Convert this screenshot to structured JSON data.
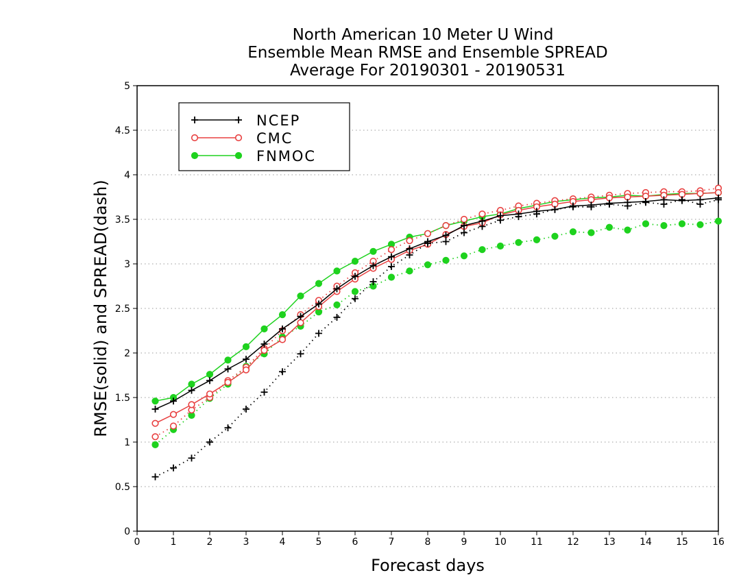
{
  "chart_data": {
    "type": "line",
    "title_lines": [
      "North American 10 Meter U Wind",
      "Ensemble Mean RMSE and Ensemble SPREAD",
      "Average For 20190301 - 20190531"
    ],
    "xlabel": "Forecast days",
    "ylabel": "RMSE(solid) and SPREAD(dash)",
    "xlim": [
      0,
      16
    ],
    "ylim": [
      0,
      5
    ],
    "xticks": [
      "0",
      "1",
      "2",
      "3",
      "4",
      "5",
      "6",
      "7",
      "8",
      "9",
      "10",
      "11",
      "12",
      "13",
      "14",
      "15",
      "16"
    ],
    "yticks": [
      "0",
      "0.5",
      "1",
      "1.5",
      "2",
      "2.5",
      "3",
      "3.5",
      "4",
      "4.5",
      "5"
    ],
    "grid": "horizontal dotted",
    "legend_position": "top-left",
    "x": [
      0.5,
      1,
      1.5,
      2,
      2.5,
      3,
      3.5,
      4,
      4.5,
      5,
      5.5,
      6,
      6.5,
      7,
      7.5,
      8,
      8.5,
      9,
      9.5,
      10,
      10.5,
      11,
      11.5,
      12,
      12.5,
      13,
      13.5,
      14,
      14.5,
      15,
      15.5,
      16
    ],
    "series": [
      {
        "name": "NCEP",
        "marker": "plus",
        "color": "#000000",
        "rmse": [
          1.37,
          1.46,
          1.58,
          1.69,
          1.82,
          1.93,
          2.1,
          2.27,
          2.41,
          2.55,
          2.72,
          2.86,
          2.98,
          3.08,
          3.17,
          3.25,
          3.32,
          3.43,
          3.48,
          3.54,
          3.56,
          3.59,
          3.61,
          3.65,
          3.66,
          3.68,
          3.69,
          3.7,
          3.72,
          3.71,
          3.72,
          3.74
        ],
        "spread": [
          0.61,
          0.71,
          0.82,
          1.0,
          1.16,
          1.37,
          1.56,
          1.79,
          1.99,
          2.22,
          2.4,
          2.61,
          2.8,
          2.97,
          3.1,
          3.23,
          3.25,
          3.35,
          3.42,
          3.49,
          3.53,
          3.56,
          3.61,
          3.64,
          3.64,
          3.67,
          3.65,
          3.69,
          3.67,
          3.72,
          3.67,
          3.72
        ]
      },
      {
        "name": "CMC",
        "marker": "open-circle",
        "color": "#e84040",
        "rmse": [
          1.21,
          1.31,
          1.42,
          1.54,
          1.67,
          1.81,
          2.03,
          2.15,
          2.34,
          2.52,
          2.69,
          2.83,
          2.95,
          3.05,
          3.15,
          3.22,
          3.33,
          3.42,
          3.46,
          3.55,
          3.6,
          3.64,
          3.67,
          3.7,
          3.72,
          3.74,
          3.75,
          3.76,
          3.77,
          3.78,
          3.79,
          3.8
        ],
        "spread": [
          1.06,
          1.18,
          1.36,
          1.5,
          1.69,
          1.84,
          2.05,
          2.25,
          2.43,
          2.59,
          2.75,
          2.9,
          3.03,
          3.16,
          3.26,
          3.34,
          3.43,
          3.5,
          3.56,
          3.6,
          3.65,
          3.68,
          3.71,
          3.73,
          3.75,
          3.77,
          3.79,
          3.8,
          3.81,
          3.81,
          3.82,
          3.85
        ]
      },
      {
        "name": "FNMOC",
        "marker": "filled-circle",
        "color": "#1ed21e",
        "rmse": [
          1.46,
          1.5,
          1.65,
          1.76,
          1.92,
          2.07,
          2.27,
          2.43,
          2.64,
          2.78,
          2.92,
          3.03,
          3.14,
          3.22,
          3.3,
          3.34,
          3.43,
          3.48,
          3.53,
          3.56,
          3.62,
          3.66,
          3.7,
          3.72,
          3.74,
          3.75,
          3.77,
          3.76,
          3.78,
          3.79,
          3.79,
          3.8
        ],
        "spread": [
          0.97,
          1.14,
          1.3,
          1.49,
          1.65,
          1.85,
          1.99,
          2.18,
          2.3,
          2.46,
          2.54,
          2.69,
          2.75,
          2.85,
          2.92,
          2.99,
          3.04,
          3.09,
          3.16,
          3.2,
          3.24,
          3.27,
          3.31,
          3.36,
          3.35,
          3.41,
          3.38,
          3.45,
          3.43,
          3.45,
          3.44,
          3.48
        ]
      }
    ]
  }
}
